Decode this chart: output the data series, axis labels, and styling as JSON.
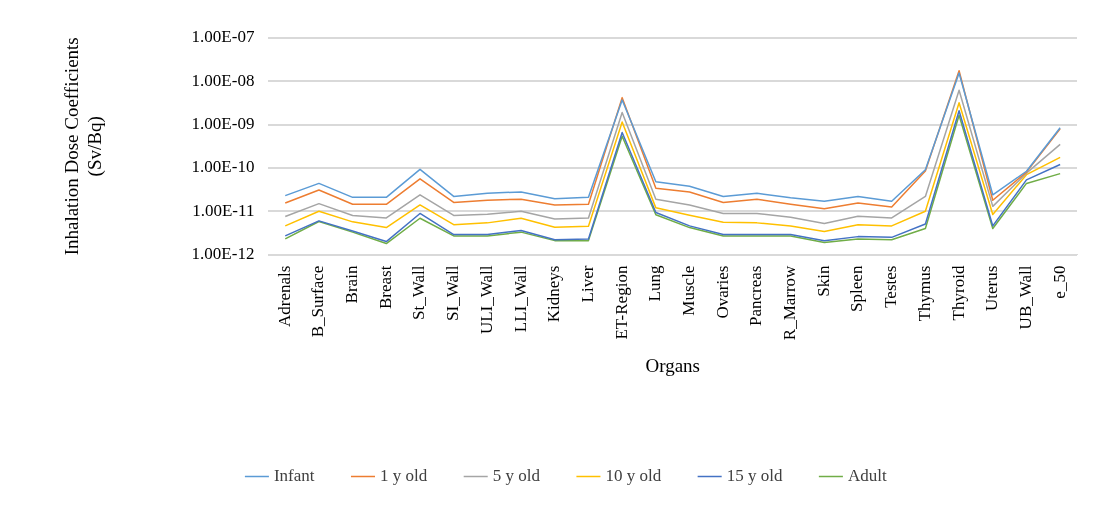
{
  "chart_data": {
    "type": "line",
    "xlabel": "Organs",
    "ylabel": "Inhalation Dose Coefficients (Sv/Bq)",
    "categories": [
      "Adrenals",
      "B_Surface",
      "Brain",
      "Breast",
      "St_Wall",
      "SI_Wall",
      "ULI_Wall",
      "LLI_Wall",
      "Kidneys",
      "Liver",
      "ET-Region",
      "Lung",
      "Muscle",
      "Ovaries",
      "Pancreas",
      "R_Marrow",
      "Skin",
      "Spleen",
      "Testes",
      "Thymus",
      "Thyroid",
      "Uterus",
      "UB_Wall",
      "e_50"
    ],
    "series": [
      {
        "name": "Infant",
        "color": "#5b9bd5",
        "values": [
          2.3e-11,
          4.4e-11,
          2.1e-11,
          2.1e-11,
          9.3e-11,
          2.2e-11,
          2.6e-11,
          2.8e-11,
          1.95e-11,
          2.1e-11,
          3.7e-09,
          4.8e-11,
          3.8e-11,
          2.2e-11,
          2.6e-11,
          2.05e-11,
          1.7e-11,
          2.2e-11,
          1.7e-11,
          9.1e-11,
          1.55e-08,
          2.4e-11,
          8.4e-11,
          8.5e-10
        ]
      },
      {
        "name": "1 y old",
        "color": "#ed7d31",
        "values": [
          1.55e-11,
          3.1e-11,
          1.45e-11,
          1.45e-11,
          5.6e-11,
          1.6e-11,
          1.8e-11,
          1.9e-11,
          1.4e-11,
          1.45e-11,
          4.2e-09,
          3.4e-11,
          2.8e-11,
          1.6e-11,
          1.9e-11,
          1.45e-11,
          1.15e-11,
          1.55e-11,
          1.25e-11,
          8.5e-11,
          1.75e-08,
          1.8e-11,
          8e-11,
          8e-10
        ]
      },
      {
        "name": "5 y old",
        "color": "#a5a5a5",
        "values": [
          7.6e-12,
          1.5e-11,
          8e-12,
          7e-12,
          2.4e-11,
          8e-12,
          8.5e-12,
          1e-11,
          6.6e-12,
          7e-12,
          1.9e-09,
          1.9e-11,
          1.4e-11,
          8.9e-12,
          8.9e-12,
          7.3e-12,
          5.2e-12,
          7.7e-12,
          7e-12,
          2.2e-11,
          6.2e-09,
          1.3e-11,
          7.6e-11,
          3.5e-10
        ]
      },
      {
        "name": "10 y old",
        "color": "#ffc000",
        "values": [
          4.6e-12,
          1e-11,
          5.7e-12,
          4.2e-12,
          1.4e-11,
          4.9e-12,
          5.4e-12,
          6.9e-12,
          4.3e-12,
          4.5e-12,
          1.15e-09,
          1.2e-11,
          8.1e-12,
          5.6e-12,
          5.4e-12,
          4.6e-12,
          3.4e-12,
          4.9e-12,
          4.6e-12,
          1e-11,
          3.2e-09,
          8.4e-12,
          7e-11,
          1.75e-10
        ]
      },
      {
        "name": "15 y old",
        "color": "#4472c4",
        "values": [
          2.7e-12,
          6e-12,
          3.5e-12,
          2e-12,
          8.9e-12,
          2.9e-12,
          2.9e-12,
          3.6e-12,
          2.2e-12,
          2.3e-12,
          6.6e-10,
          9.4e-12,
          4.6e-12,
          2.9e-12,
          2.9e-12,
          2.9e-12,
          2.1e-12,
          2.6e-12,
          2.5e-12,
          5.1e-12,
          2.1e-09,
          4.6e-12,
          5.3e-11,
          1.2e-10
        ]
      },
      {
        "name": "Adult",
        "color": "#70ad47",
        "values": [
          2.3e-12,
          5.8e-12,
          3.3e-12,
          1.8e-12,
          6.9e-12,
          2.7e-12,
          2.7e-12,
          3.3e-12,
          2.1e-12,
          2.1e-12,
          5.4e-10,
          8.3e-12,
          4.2e-12,
          2.7e-12,
          2.7e-12,
          2.7e-12,
          1.9e-12,
          2.3e-12,
          2.2e-12,
          4e-12,
          1.65e-09,
          4e-12,
          4.4e-11,
          7.4e-11
        ]
      }
    ],
    "log": "y",
    "ylim": [
      1e-12,
      1e-07
    ],
    "yticks": [
      {
        "value": 1e-12,
        "label": "1.00E-12"
      },
      {
        "value": 1e-11,
        "label": "1.00E-11"
      },
      {
        "value": 1e-10,
        "label": "1.00E-10"
      },
      {
        "value": 1e-09,
        "label": "1.00E-09"
      },
      {
        "value": 1e-08,
        "label": "1.00E-08"
      },
      {
        "value": 1e-07,
        "label": "1.00E-07"
      }
    ],
    "grid": "y",
    "legend": "bottom",
    "marker": "none",
    "line_style": "solid"
  }
}
